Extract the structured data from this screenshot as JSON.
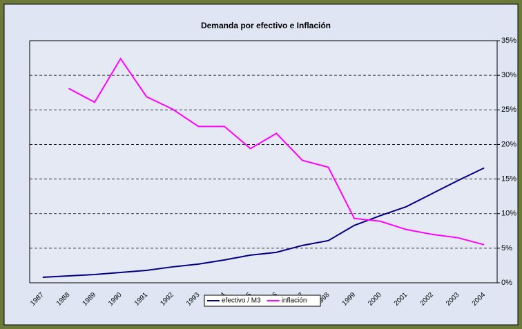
{
  "chart_data": {
    "type": "line",
    "title": "Demanda por efectivo e Inflación",
    "categories": [
      "1987",
      "1988",
      "1989",
      "1990",
      "1991",
      "1992",
      "1993",
      "1994",
      "1995",
      "1996",
      "1997",
      "1998",
      "1999",
      "2000",
      "2001",
      "2002",
      "2003",
      "2004"
    ],
    "series": [
      {
        "name": "efectivo / M3",
        "color": "#000080",
        "values": [
          0.8,
          1.0,
          1.2,
          1.5,
          1.8,
          2.3,
          2.7,
          3.3,
          4.0,
          4.4,
          5.4,
          6.1,
          8.3,
          9.7,
          11.0,
          12.9,
          14.8,
          16.6
        ]
      },
      {
        "name": "inflación",
        "color": "#ff00ff",
        "values": [
          null,
          28.1,
          26.1,
          32.4,
          26.9,
          25.1,
          22.6,
          22.6,
          19.4,
          21.6,
          17.7,
          16.7,
          9.3,
          8.9,
          7.7,
          7.0,
          6.5,
          5.5
        ]
      }
    ],
    "ylim": [
      0,
      35
    ],
    "yticks": [
      {
        "value": 0,
        "label": "0%"
      },
      {
        "value": 5,
        "label": "5%"
      },
      {
        "value": 10,
        "label": "10%"
      },
      {
        "value": 15,
        "label": "15%"
      },
      {
        "value": 20,
        "label": "20%"
      },
      {
        "value": 25,
        "label": "25%"
      },
      {
        "value": 30,
        "label": "30%"
      },
      {
        "value": 35,
        "label": "35%"
      }
    ],
    "grid": true,
    "legend": "bottom"
  }
}
